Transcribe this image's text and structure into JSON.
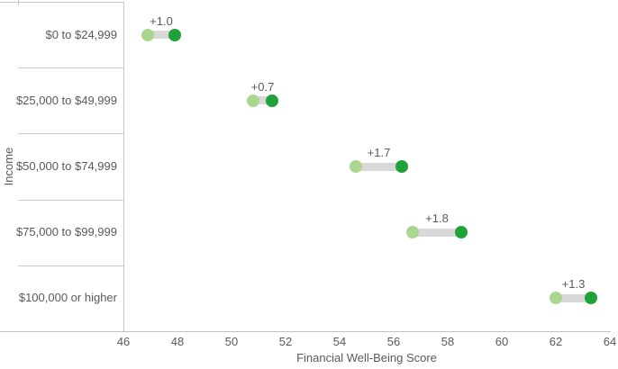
{
  "chart_data": {
    "type": "dumbbell",
    "title": "",
    "xlabel": "Financial Well-Being Score",
    "ylabel": "Income",
    "xlim": [
      46,
      64
    ],
    "x_ticks": [
      46,
      48,
      50,
      52,
      54,
      56,
      58,
      60,
      62,
      64
    ],
    "grid": "category-separators-only",
    "legend": "none",
    "rows": [
      {
        "category": "$0 to $24,999",
        "start": 46.9,
        "end": 47.9,
        "change_label": "+1.0"
      },
      {
        "category": "$25,000 to $49,999",
        "start": 50.8,
        "end": 51.5,
        "change_label": "+0.7"
      },
      {
        "category": "$50,000 to $74,999",
        "start": 54.6,
        "end": 56.3,
        "change_label": "+1.7"
      },
      {
        "category": "$75,000 to $99,999",
        "start": 56.7,
        "end": 58.5,
        "change_label": "+1.8"
      },
      {
        "category": "$100,000 or higher",
        "start": 62.0,
        "end": 63.3,
        "change_label": "+1.3"
      }
    ],
    "colors": {
      "start_dot": "#abd690",
      "end_dot": "#1fa23a",
      "connector": "#d8d8d8",
      "grid_line": "#c9c9c9",
      "axis_line": "#c2c2c2",
      "text": "#595959"
    }
  }
}
